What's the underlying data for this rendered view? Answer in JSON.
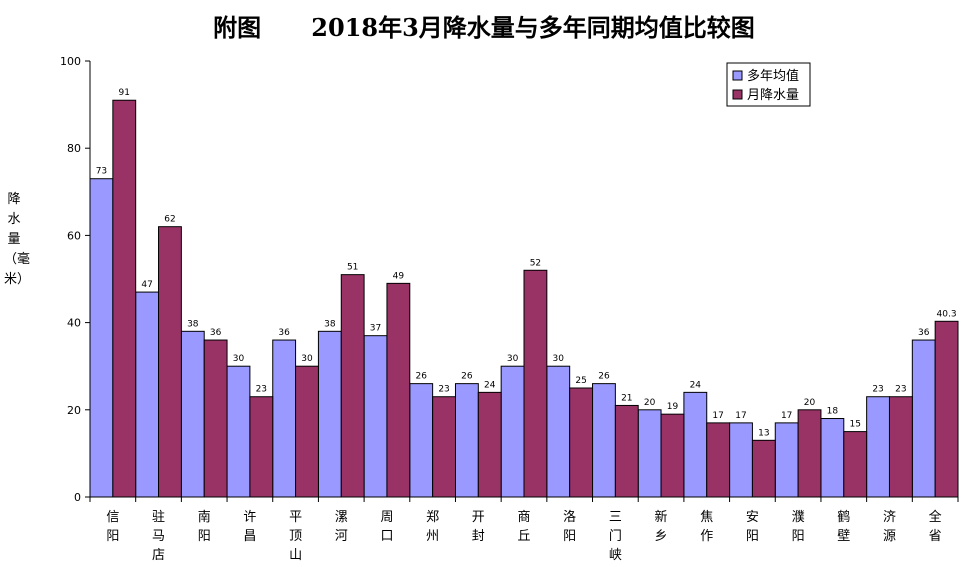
{
  "chart_data": {
    "type": "bar",
    "title": "附图      2018年3月降水量与多年同期均值比较图",
    "ylabel": "降水量（毫米）",
    "xlabel": "",
    "ylim": [
      0,
      100
    ],
    "yticks": [
      0,
      20,
      40,
      60,
      80,
      100
    ],
    "grid": false,
    "legend_position": "top-right",
    "categories": [
      "信阳",
      "驻马店",
      "南阳",
      "许昌",
      "平顶山",
      "漯河",
      "周口",
      "郑州",
      "开封",
      "商丘",
      "洛阳",
      "三门峡",
      "新乡",
      "焦作",
      "安阳",
      "濮阳",
      "鹤壁",
      "济源",
      "全省"
    ],
    "series": [
      {
        "name": "多年均值",
        "color": "#9999ff",
        "values": [
          73,
          47,
          38,
          30,
          36,
          38,
          37,
          26,
          26,
          30,
          30,
          26,
          20,
          24,
          17,
          17,
          18,
          23,
          36
        ],
        "labels": [
          "73",
          "47",
          "38",
          "30",
          "36",
          "38",
          "37",
          "26",
          "26",
          "30",
          "30",
          "26",
          "20",
          "24",
          "17",
          "17",
          "18",
          "23",
          "36"
        ]
      },
      {
        "name": "月降水量",
        "color": "#993366",
        "values": [
          91,
          62,
          36,
          23,
          30,
          51,
          49,
          23,
          24,
          52,
          25,
          21,
          19,
          17,
          13,
          20,
          15,
          23,
          40.3
        ],
        "labels": [
          "91",
          "62",
          "36",
          "23",
          "30",
          "51",
          "49",
          "23",
          "24",
          "52",
          "25",
          "21",
          "19",
          "17",
          "13",
          "20",
          "15",
          "23",
          "40.3"
        ]
      }
    ]
  }
}
